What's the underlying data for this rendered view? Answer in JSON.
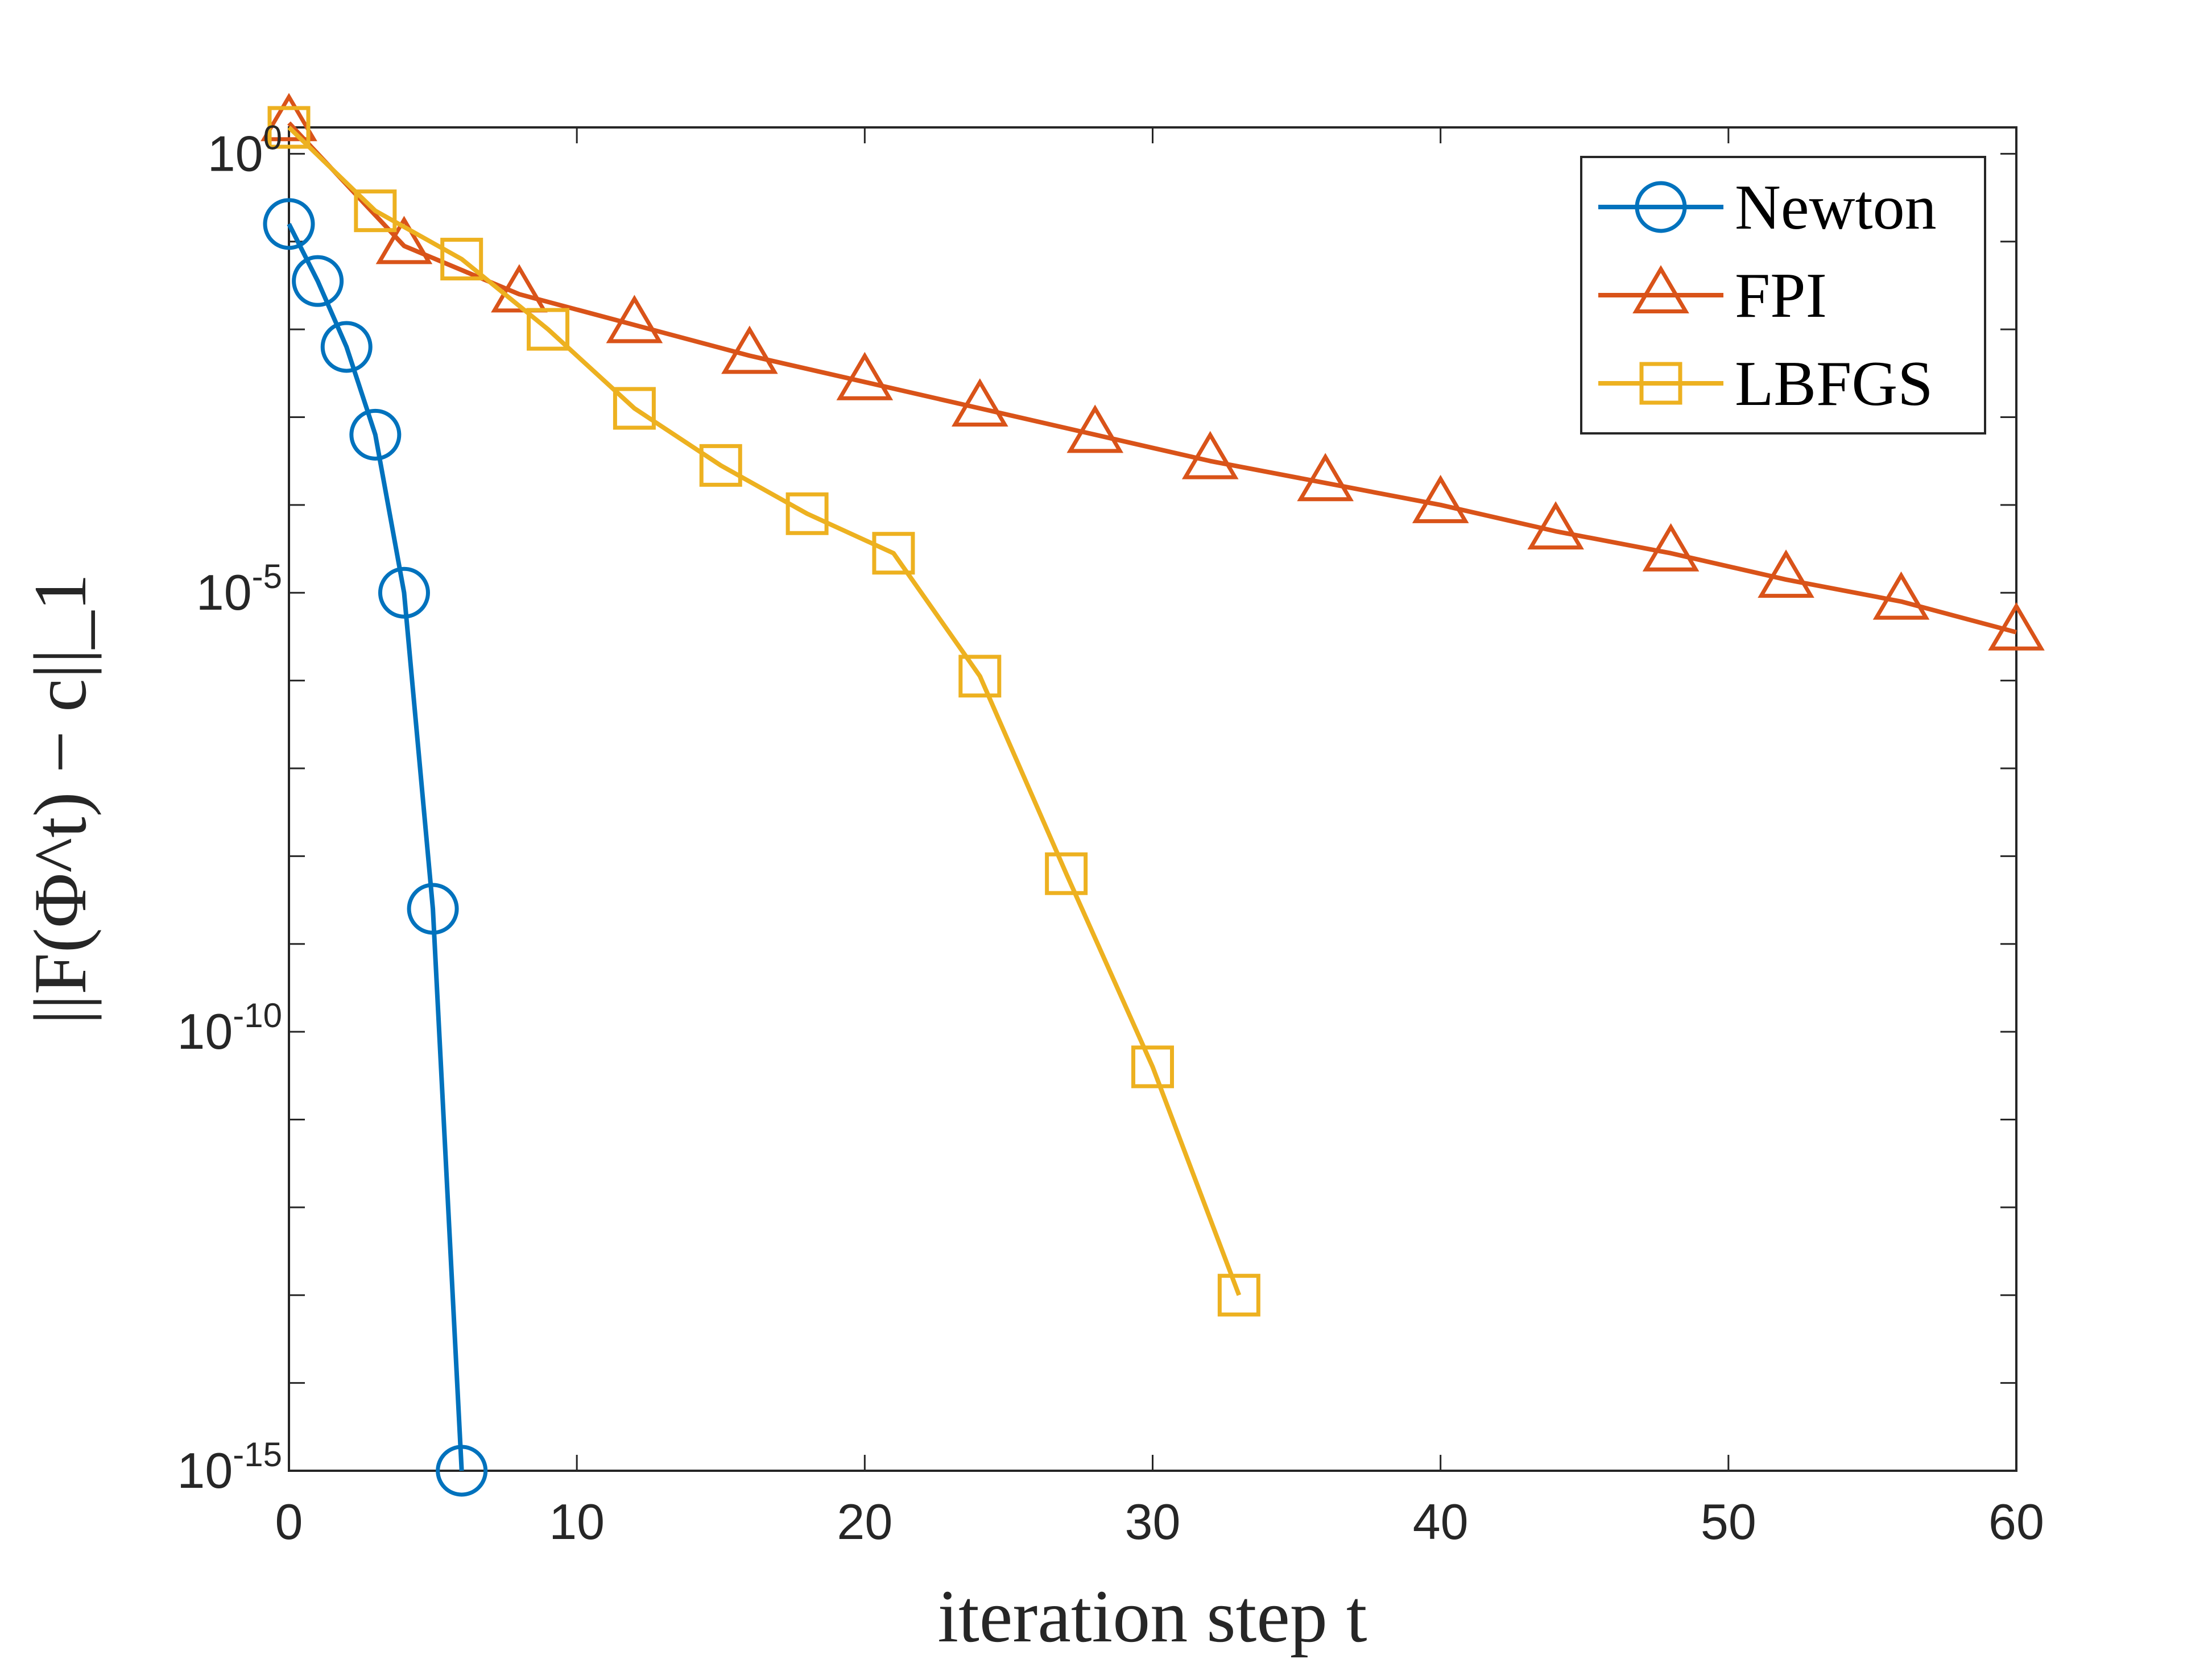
{
  "chart_data": {
    "type": "line",
    "yscale": "log",
    "title": "",
    "xlabel": "iteration step t",
    "ylabel": "||F(Φ^t) − c||_1",
    "xlim": [
      0,
      60
    ],
    "ylim_exp": [
      -15,
      0.3
    ],
    "xticks": [
      0,
      10,
      20,
      30,
      40,
      50,
      60
    ],
    "yticks": [
      {
        "base": "10",
        "exp": "0",
        "value_exp": 0
      },
      {
        "base": "10",
        "exp": "-5",
        "value_exp": -5
      },
      {
        "base": "10",
        "exp": "-10",
        "value_exp": -10
      },
      {
        "base": "10",
        "exp": "-15",
        "value_exp": -15
      }
    ],
    "legend_position": "top-right",
    "series": [
      {
        "name": "Newton",
        "color": "#0072BD",
        "marker": "circle",
        "x": [
          0,
          1,
          2,
          3,
          4,
          5,
          6
        ],
        "log10_y": [
          -0.8,
          -1.45,
          -2.2,
          -3.2,
          -5.0,
          -8.6,
          -15.0
        ]
      },
      {
        "name": "FPI",
        "color": "#D95319",
        "marker": "triangle",
        "x": [
          0,
          4,
          8,
          12,
          16,
          20,
          24,
          28,
          32,
          36,
          40,
          44,
          48,
          52,
          56,
          60
        ],
        "log10_y": [
          0.35,
          -1.05,
          -1.6,
          -1.95,
          -2.3,
          -2.6,
          -2.9,
          -3.2,
          -3.5,
          -3.75,
          -4.0,
          -4.3,
          -4.55,
          -4.85,
          -5.1,
          -5.45
        ]
      },
      {
        "name": "LBFGS",
        "color": "#EDB120",
        "marker": "square",
        "x": [
          0,
          3,
          6,
          9,
          12,
          15,
          18,
          21,
          24,
          27,
          30,
          33
        ],
        "log10_y": [
          0.3,
          -0.65,
          -1.2,
          -2.0,
          -2.9,
          -3.55,
          -4.1,
          -4.55,
          -5.95,
          -8.2,
          -10.4,
          -13.0
        ]
      }
    ]
  }
}
